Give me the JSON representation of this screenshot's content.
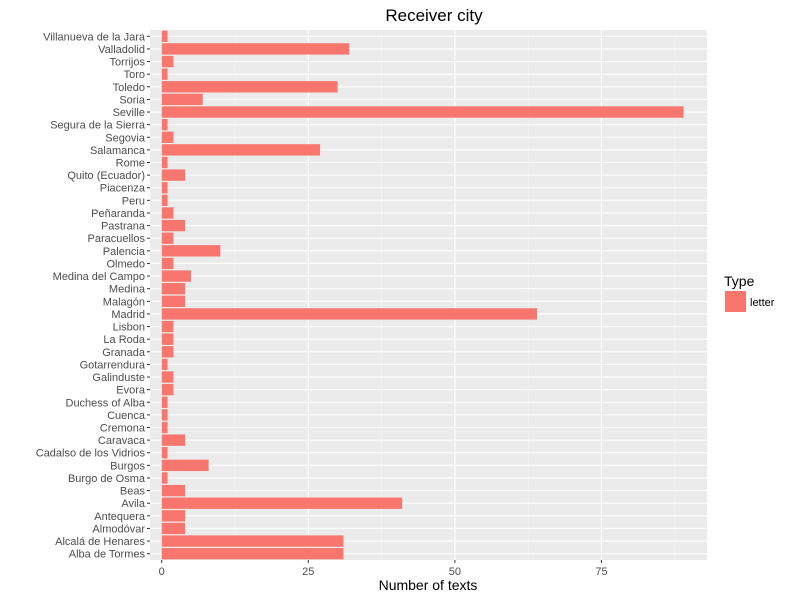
{
  "chart_data": {
    "type": "bar",
    "orientation": "horizontal",
    "title": "Receiver city",
    "xlabel": "Number of texts",
    "ylabel": "",
    "xlim": [
      -2,
      93
    ],
    "xticks": [
      0,
      25,
      50,
      75
    ],
    "grid": true,
    "legend_placement": "right",
    "categories": [
      "Villanueva de la Jara",
      "Valladolid",
      "Torrijos",
      "Toro",
      "Toledo",
      "Soria",
      "Seville",
      "Segura de la Sierra",
      "Segovia",
      "Salamanca",
      "Rome",
      "Quito (Ecuador)",
      "Piacenza",
      "Peru",
      "Peñaranda",
      "Pastrana",
      "Paracuellos",
      "Palencia",
      "Olmedo",
      "Medina del Campo",
      "Medina",
      "Malagón",
      "Madrid",
      "Lisbon",
      "La Roda",
      "Granada",
      "Gotarrendura",
      "Galinduste",
      "Evora",
      "Duchess of Alba",
      "Cuenca",
      "Cremona",
      "Caravaca",
      "Cadalso de los Vidrios",
      "Burgos",
      "Burgo de Osma",
      "Beas",
      "Avila",
      "Antequera",
      "Almodóvar",
      "Alcalá de Henares",
      "Alba de Tormes"
    ],
    "series": [
      {
        "name": "letter",
        "color": "#f8766d",
        "values": [
          1,
          32,
          2,
          1,
          30,
          7,
          89,
          1,
          2,
          27,
          1,
          4,
          1,
          1,
          2,
          4,
          2,
          10,
          2,
          5,
          4,
          4,
          64,
          2,
          2,
          2,
          1,
          2,
          2,
          1,
          1,
          1,
          4,
          1,
          8,
          1,
          4,
          41,
          4,
          4,
          31,
          31
        ]
      }
    ],
    "legend": {
      "title": "Type",
      "entries": [
        "letter"
      ]
    }
  }
}
